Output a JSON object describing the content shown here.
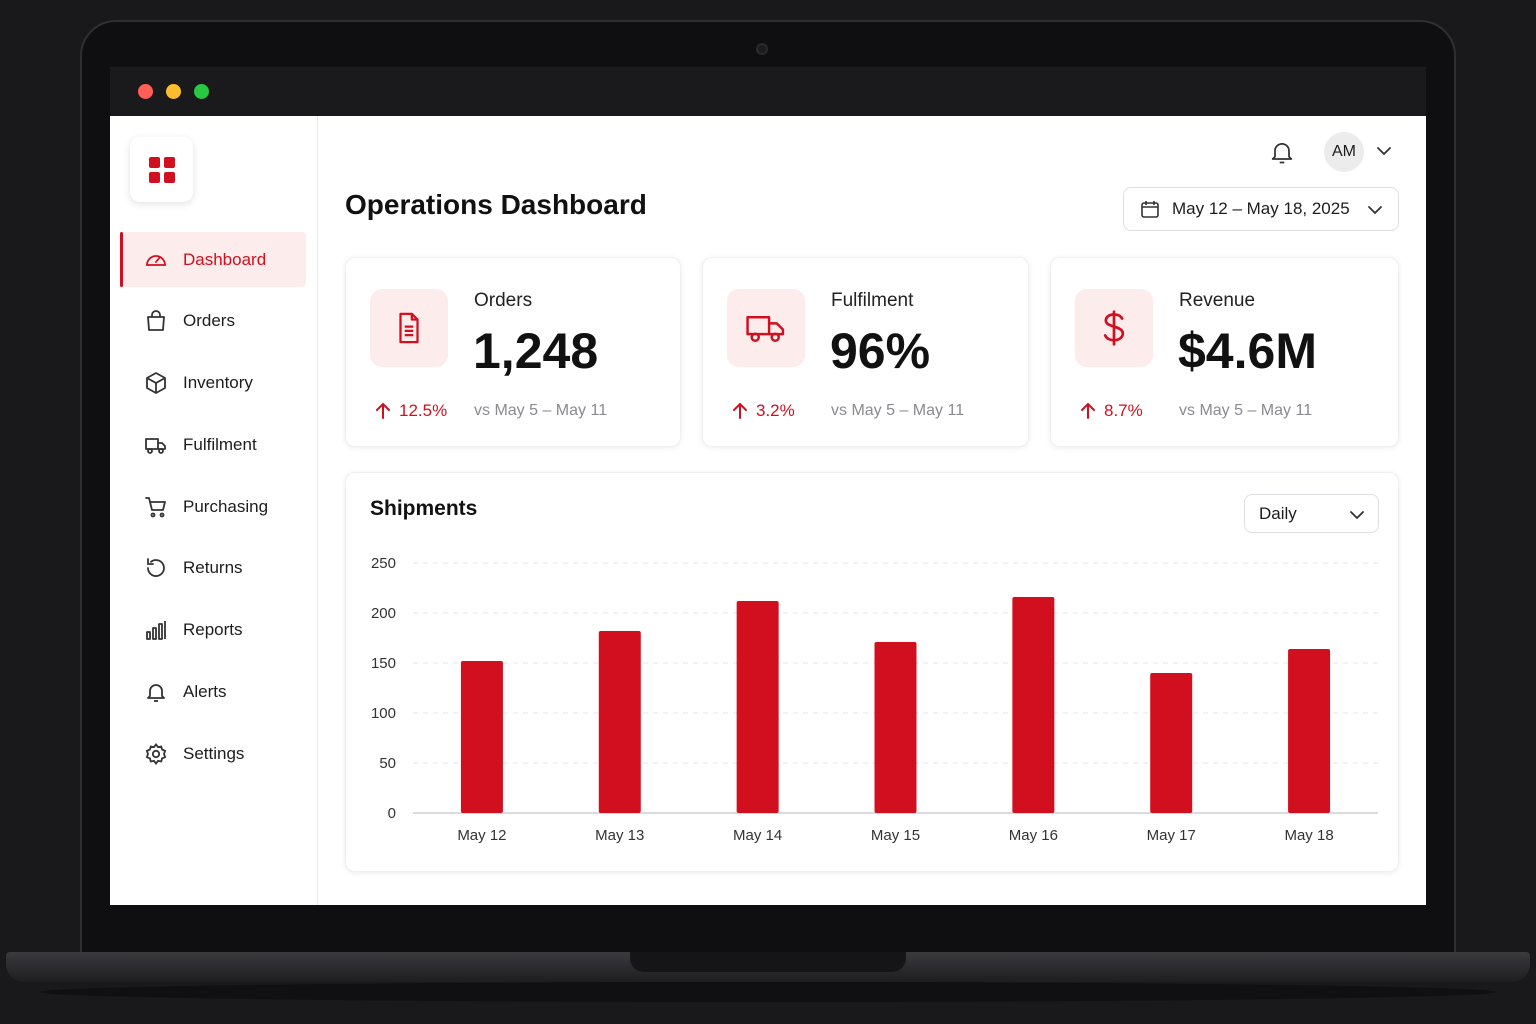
{
  "window": {
    "controls": [
      "close",
      "minimize",
      "maximize"
    ]
  },
  "sidebar": {
    "logo_icon": "grid-icon",
    "items": [
      {
        "label": "Dashboard",
        "icon": "gauge-icon",
        "active": true
      },
      {
        "label": "Orders",
        "icon": "shopping-bag-icon",
        "active": false
      },
      {
        "label": "Inventory",
        "icon": "box-icon",
        "active": false
      },
      {
        "label": "Fulfilment",
        "icon": "truck-icon",
        "active": false
      },
      {
        "label": "Purchasing",
        "icon": "cart-icon",
        "active": false
      },
      {
        "label": "Returns",
        "icon": "return-icon",
        "active": false
      },
      {
        "label": "Reports",
        "icon": "bar-chart-icon",
        "active": false
      },
      {
        "label": "Alerts",
        "icon": "bell-icon",
        "active": false
      },
      {
        "label": "Settings",
        "icon": "gear-icon",
        "active": false
      }
    ]
  },
  "header": {
    "title": "Operations Dashboard",
    "user_initials": "AM",
    "date_range": "May 12 – May 18, 2025"
  },
  "cards": [
    {
      "label": "Orders",
      "value": "1,248",
      "delta": "12.5%",
      "compare": "vs May 5 – May 11",
      "icon": "document-icon"
    },
    {
      "label": "Fulfilment",
      "value": "96%",
      "delta": "3.2%",
      "compare": "vs May 5 – May 11",
      "icon": "truck-icon"
    },
    {
      "label": "Revenue",
      "value": "$4.6M",
      "delta": "8.7%",
      "compare": "vs May 5 – May 11",
      "icon": "dollar-icon"
    }
  ],
  "shipments": {
    "title": "Shipments",
    "period": "Daily"
  },
  "colors": {
    "accent": "#d20f1f",
    "accent_soft": "#fdecec"
  },
  "chart_data": {
    "type": "bar",
    "title": "Shipments",
    "categories": [
      "May 12",
      "May 13",
      "May 14",
      "May 15",
      "May 16",
      "May 17",
      "May 18"
    ],
    "values": [
      152,
      182,
      212,
      171,
      216,
      140,
      164
    ],
    "ylim": [
      0,
      250
    ],
    "yticks": [
      0,
      50,
      100,
      150,
      200,
      250
    ],
    "grid": true,
    "color": "#d20f1f"
  }
}
